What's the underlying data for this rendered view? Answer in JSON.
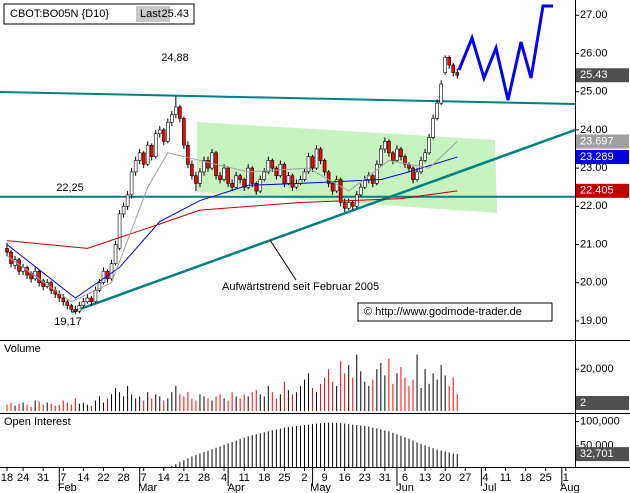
{
  "chart_data": {
    "type": "candlestick",
    "header": {
      "symbol": "CBOT:BO05N {D10}",
      "last_label": "Last"
    },
    "up_color": "#ffffff",
    "down_color": "#ff0000",
    "ylim": [
      18.5,
      27.4
    ],
    "yticks": [
      {
        "value": 27,
        "label": "27.00"
      },
      {
        "value": 26,
        "label": "26.00"
      },
      {
        "value": 25,
        "label": "25.00"
      },
      {
        "value": 24,
        "label": "24.00"
      },
      {
        "value": 23,
        "label": "23.00"
      },
      {
        "value": 22,
        "label": "22.00"
      },
      {
        "value": 21,
        "label": "21.00"
      },
      {
        "value": 20,
        "label": "20.00"
      },
      {
        "value": 19,
        "label": "19.00"
      }
    ],
    "xticks": [
      {
        "value": 0,
        "label": "18"
      },
      {
        "value": 4,
        "label": "24"
      },
      {
        "value": 9,
        "label": "31"
      },
      {
        "value": 14,
        "label": "7"
      },
      {
        "value": 19,
        "label": "14"
      },
      {
        "value": 24,
        "label": "22"
      },
      {
        "value": 29,
        "label": "28"
      },
      {
        "value": 34,
        "label": "7"
      },
      {
        "value": 39,
        "label": "14"
      },
      {
        "value": 44,
        "label": "21"
      },
      {
        "value": 49,
        "label": "28"
      },
      {
        "value": 54,
        "label": "4"
      },
      {
        "value": 59,
        "label": "11"
      },
      {
        "value": 64,
        "label": "18"
      },
      {
        "value": 69,
        "label": "25"
      },
      {
        "value": 74,
        "label": "2"
      },
      {
        "value": 79,
        "label": "9"
      },
      {
        "value": 84,
        "label": "16"
      },
      {
        "value": 89,
        "label": "23"
      },
      {
        "value": 94,
        "label": "31"
      },
      {
        "value": 99,
        "label": "6"
      },
      {
        "value": 104,
        "label": "13"
      },
      {
        "value": 109,
        "label": "20"
      },
      {
        "value": 114,
        "label": "27"
      },
      {
        "value": 119,
        "label": "4"
      },
      {
        "value": 124,
        "label": "11"
      },
      {
        "value": 129,
        "label": "18"
      },
      {
        "value": 134,
        "label": "25"
      },
      {
        "value": 139,
        "label": "1"
      }
    ],
    "months": [
      {
        "value": 15,
        "label": "Feb"
      },
      {
        "value": 35,
        "label": "Mar"
      },
      {
        "value": 57,
        "label": "Apr"
      },
      {
        "value": 78,
        "label": "May"
      },
      {
        "value": 99,
        "label": "Jun"
      },
      {
        "value": 120,
        "label": "Jul"
      },
      {
        "value": 140,
        "label": "Aug"
      }
    ],
    "ohlc": [
      [
        20.9,
        21.05,
        20.7,
        20.8
      ],
      [
        20.8,
        20.85,
        20.4,
        20.5
      ],
      [
        20.45,
        20.7,
        20.35,
        20.6
      ],
      [
        20.6,
        20.65,
        20.2,
        20.3
      ],
      [
        20.3,
        20.5,
        20.2,
        20.4
      ],
      [
        20.4,
        20.45,
        20.1,
        20.2
      ],
      [
        20.25,
        20.3,
        20.0,
        20.1
      ],
      [
        20.1,
        20.4,
        20.05,
        20.3
      ],
      [
        20.3,
        20.35,
        19.9,
        20.0
      ],
      [
        20.05,
        20.1,
        19.8,
        19.9
      ],
      [
        19.9,
        20.1,
        19.85,
        20.0
      ],
      [
        20.0,
        20.05,
        19.7,
        19.8
      ],
      [
        19.8,
        19.9,
        19.6,
        19.7
      ],
      [
        19.7,
        19.8,
        19.5,
        19.6
      ],
      [
        19.6,
        19.7,
        19.4,
        19.5
      ],
      [
        19.5,
        19.55,
        19.3,
        19.4
      ],
      [
        19.4,
        19.45,
        19.22,
        19.3
      ],
      [
        19.3,
        19.4,
        19.17,
        19.25
      ],
      [
        19.25,
        19.5,
        19.2,
        19.4
      ],
      [
        19.4,
        19.6,
        19.35,
        19.5
      ],
      [
        19.5,
        19.7,
        19.45,
        19.6
      ],
      [
        19.6,
        19.65,
        19.4,
        19.5
      ],
      [
        19.5,
        19.9,
        19.45,
        19.8
      ],
      [
        19.8,
        20.1,
        19.75,
        20.0
      ],
      [
        20.0,
        20.4,
        19.95,
        20.3
      ],
      [
        20.3,
        20.35,
        20.0,
        20.1
      ],
      [
        20.1,
        20.6,
        20.05,
        20.5
      ],
      [
        20.5,
        21.1,
        20.45,
        21.0
      ],
      [
        20.9,
        21.9,
        20.85,
        21.8
      ],
      [
        21.8,
        22.1,
        21.7,
        22.0
      ],
      [
        22.0,
        22.4,
        21.9,
        22.3
      ],
      [
        22.3,
        23.0,
        22.2,
        22.9
      ],
      [
        22.9,
        23.3,
        22.8,
        23.2
      ],
      [
        23.2,
        23.5,
        23.1,
        23.4
      ],
      [
        23.4,
        23.45,
        23.0,
        23.1
      ],
      [
        23.1,
        23.7,
        23.05,
        23.6
      ],
      [
        23.6,
        23.65,
        23.2,
        23.3
      ],
      [
        23.3,
        24.0,
        23.25,
        23.9
      ],
      [
        23.9,
        24.1,
        23.8,
        24.0
      ],
      [
        24.0,
        24.05,
        23.6,
        23.7
      ],
      [
        23.7,
        24.3,
        23.65,
        24.2
      ],
      [
        24.2,
        24.5,
        24.1,
        24.4
      ],
      [
        24.4,
        24.88,
        24.3,
        24.6
      ],
      [
        24.6,
        24.65,
        24.2,
        24.3
      ],
      [
        24.3,
        24.35,
        23.5,
        23.6
      ],
      [
        23.6,
        23.7,
        23.0,
        23.1
      ],
      [
        23.1,
        23.2,
        22.7,
        22.8
      ],
      [
        22.8,
        22.9,
        22.4,
        22.6
      ],
      [
        22.6,
        23.0,
        22.5,
        22.9
      ],
      [
        22.9,
        23.3,
        22.8,
        23.2
      ],
      [
        23.2,
        23.3,
        22.9,
        23.0
      ],
      [
        23.0,
        23.5,
        22.95,
        23.4
      ],
      [
        23.4,
        23.45,
        22.7,
        22.8
      ],
      [
        22.8,
        22.9,
        22.6,
        22.7
      ],
      [
        22.7,
        23.1,
        22.65,
        23.0
      ],
      [
        23.0,
        23.05,
        22.5,
        22.6
      ],
      [
        22.6,
        22.7,
        22.4,
        22.5
      ],
      [
        22.5,
        22.9,
        22.45,
        22.8
      ],
      [
        22.8,
        22.85,
        22.6,
        22.7
      ],
      [
        22.7,
        22.75,
        22.4,
        22.5
      ],
      [
        22.5,
        23.1,
        22.45,
        23.0
      ],
      [
        23.0,
        23.05,
        22.5,
        22.6
      ],
      [
        22.6,
        22.65,
        22.3,
        22.4
      ],
      [
        22.4,
        22.8,
        22.35,
        22.7
      ],
      [
        22.7,
        23.0,
        22.65,
        22.9
      ],
      [
        22.9,
        23.3,
        22.85,
        23.2
      ],
      [
        23.2,
        23.25,
        22.9,
        23.0
      ],
      [
        23.0,
        23.05,
        22.7,
        22.8
      ],
      [
        22.8,
        23.2,
        22.75,
        23.1
      ],
      [
        23.1,
        23.15,
        22.5,
        22.6
      ],
      [
        22.6,
        22.9,
        22.55,
        22.8
      ],
      [
        22.8,
        22.85,
        22.4,
        22.5
      ],
      [
        22.5,
        22.7,
        22.45,
        22.6
      ],
      [
        22.6,
        22.8,
        22.55,
        22.7
      ],
      [
        22.7,
        23.0,
        22.65,
        22.9
      ],
      [
        22.9,
        23.4,
        22.85,
        23.3
      ],
      [
        23.3,
        23.35,
        22.9,
        23.0
      ],
      [
        23.0,
        23.6,
        22.95,
        23.5
      ],
      [
        23.5,
        23.55,
        23.1,
        23.2
      ],
      [
        23.2,
        23.25,
        22.8,
        22.9
      ],
      [
        22.9,
        22.95,
        22.5,
        22.6
      ],
      [
        22.6,
        22.65,
        22.3,
        22.4
      ],
      [
        22.4,
        22.8,
        22.35,
        22.7
      ],
      [
        22.7,
        22.75,
        22.0,
        22.1
      ],
      [
        22.1,
        22.2,
        21.85,
        21.95
      ],
      [
        21.95,
        22.2,
        21.9,
        22.1
      ],
      [
        22.1,
        22.15,
        21.9,
        22.0
      ],
      [
        22.0,
        22.4,
        21.95,
        22.3
      ],
      [
        22.3,
        22.6,
        22.25,
        22.5
      ],
      [
        22.5,
        22.8,
        22.45,
        22.7
      ],
      [
        22.7,
        22.9,
        22.6,
        22.8
      ],
      [
        22.8,
        22.85,
        22.5,
        22.6
      ],
      [
        22.6,
        23.2,
        22.55,
        23.1
      ],
      [
        23.1,
        23.6,
        23.05,
        23.5
      ],
      [
        23.5,
        23.8,
        23.4,
        23.7
      ],
      [
        23.7,
        23.75,
        23.3,
        23.4
      ],
      [
        23.4,
        23.45,
        23.1,
        23.2
      ],
      [
        23.2,
        23.6,
        23.15,
        23.5
      ],
      [
        23.5,
        23.55,
        23.2,
        23.3
      ],
      [
        23.3,
        23.35,
        23.0,
        23.1
      ],
      [
        23.1,
        23.15,
        22.9,
        23.0
      ],
      [
        23.0,
        23.05,
        22.6,
        22.7
      ],
      [
        22.7,
        23.0,
        22.65,
        22.9
      ],
      [
        22.9,
        23.3,
        22.85,
        23.2
      ],
      [
        23.2,
        23.5,
        23.15,
        23.4
      ],
      [
        23.4,
        23.9,
        23.35,
        23.8
      ],
      [
        23.8,
        24.4,
        23.75,
        24.3
      ],
      [
        24.3,
        24.8,
        24.25,
        24.7
      ],
      [
        24.7,
        25.3,
        24.65,
        25.2
      ],
      [
        25.5,
        25.95,
        25.45,
        25.9
      ],
      [
        25.9,
        25.95,
        25.6,
        25.7
      ],
      [
        25.7,
        25.75,
        25.4,
        25.5
      ],
      [
        25.5,
        25.6,
        25.35,
        25.43
      ]
    ],
    "moving_averages": [
      {
        "color": "#c00000",
        "x": [
          0,
          20,
          37,
          48,
          73,
          98,
          112
        ],
        "values": [
          21.1,
          20.9,
          21.5,
          21.9,
          22.1,
          22.2,
          22.405
        ]
      },
      {
        "color": "#0000e0",
        "x": [
          0,
          17,
          28,
          38,
          48,
          60,
          73,
          93,
          100,
          112
        ],
        "values": [
          21.0,
          19.6,
          20.4,
          21.6,
          22.15,
          22.55,
          22.6,
          22.7,
          22.9,
          23.289
        ]
      },
      {
        "color": "#a0a0a0",
        "x": [
          0,
          16,
          26,
          35,
          40,
          48,
          60,
          75,
          85,
          95,
          105,
          112
        ],
        "values": [
          20.7,
          19.5,
          20.0,
          22.5,
          23.4,
          23.2,
          22.9,
          23.0,
          22.4,
          23.2,
          23.0,
          23.697
        ]
      }
    ],
    "annotations": [
      {
        "value": 24.88,
        "label": "24,88"
      },
      {
        "value": 22.25,
        "label": "22,25"
      },
      {
        "value": 19.17,
        "label": "19,17"
      }
    ],
    "trend_label": "Aufwärtstrend seit Februar 2005",
    "copyright": "© http://www.godmode-trader.de",
    "volume": {
      "title": "Volume",
      "color": "#000000",
      "ylim": [
        0,
        33000
      ],
      "yticks": [
        {
          "value": 20000,
          "label": "20,000"
        }
      ],
      "current": 2,
      "values": [
        3000,
        4000,
        2500,
        3500,
        4000,
        3000,
        2000,
        5000,
        4500,
        3000,
        4000,
        3500,
        2500,
        3000,
        5000,
        4000,
        3000,
        6000,
        3500,
        4000,
        3000,
        2500,
        5000,
        7000,
        4000,
        6000,
        8000,
        11000,
        9000,
        7000,
        12000,
        8000,
        6000,
        7000,
        5000,
        9000,
        6000,
        8000,
        7000,
        5000,
        6000,
        9000,
        12000,
        8000,
        7000,
        9000,
        6000,
        5000,
        8000,
        7000,
        6000,
        5000,
        7000,
        8000,
        6000,
        5000,
        9000,
        7000,
        6000,
        8000,
        7000,
        9000,
        10000,
        8000,
        7000,
        12000,
        9000,
        6000,
        8000,
        14000,
        10000,
        8000,
        9000,
        12000,
        15000,
        18000,
        11000,
        9000,
        13000,
        16000,
        20000,
        14000,
        12000,
        24000,
        18000,
        22000,
        16000,
        27000,
        19000,
        14000,
        12000,
        15000,
        20000,
        23000,
        17000,
        25000,
        13000,
        18000,
        21000,
        16000,
        12000,
        15000,
        27000,
        11000,
        20000,
        13000,
        18000,
        15000,
        22000,
        17000,
        12000,
        16000,
        8000
      ]
    },
    "open_interest": {
      "title": "Open Interest",
      "color": "#000000",
      "ylim": [
        6000,
        116000
      ],
      "yticks": [
        {
          "value": 100000,
          "label": "100,000"
        },
        {
          "value": 50000,
          "label": "50,000"
        }
      ],
      "current": {
        "value": 32701,
        "label": "32,701"
      },
      "values": [
        null,
        null,
        null,
        null,
        null,
        null,
        null,
        null,
        null,
        null,
        null,
        null,
        null,
        null,
        null,
        null,
        null,
        null,
        null,
        null,
        null,
        null,
        null,
        null,
        null,
        null,
        null,
        null,
        null,
        null,
        null,
        null,
        null,
        null,
        null,
        null,
        null,
        null,
        null,
        null,
        null,
        8000,
        12000,
        16000,
        20000,
        24000,
        28000,
        31000,
        34000,
        37000,
        40000,
        43000,
        46000,
        49000,
        52000,
        55000,
        58000,
        61000,
        64000,
        67000,
        70000,
        72000,
        74000,
        76000,
        78000,
        80000,
        82000,
        84000,
        86000,
        88000,
        89000,
        90000,
        91000,
        92000,
        93000,
        94000,
        95000,
        96000,
        97000,
        97500,
        98000,
        98000,
        97500,
        97000,
        96000,
        95000,
        94000,
        93000,
        92000,
        91000,
        90000,
        88000,
        86000,
        84000,
        82000,
        80000,
        77000,
        74000,
        71000,
        68000,
        65000,
        61000,
        57000,
        54000,
        51000,
        48000,
        45000,
        42000,
        40000,
        38000,
        36000,
        34000,
        32701
      ]
    }
  }
}
